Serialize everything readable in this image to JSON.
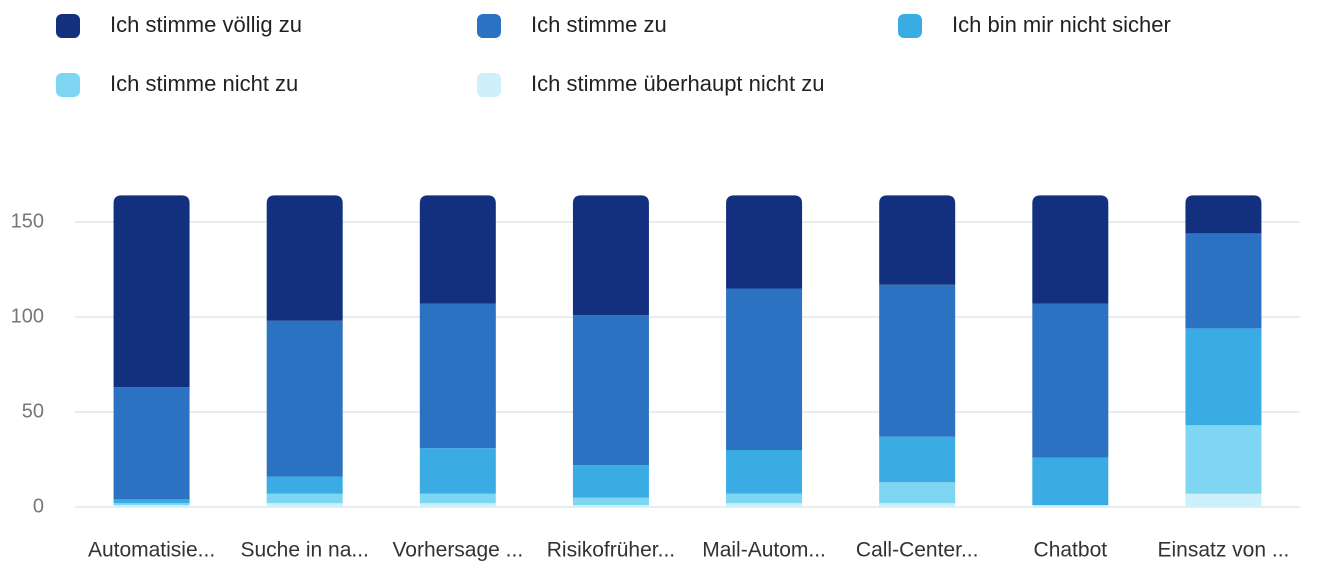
{
  "chart_data": {
    "type": "stacked_bar",
    "categories": [
      "Automatisie...",
      "Suche in na...",
      "Vorhersage ...",
      "Risikofrüher...",
      "Mail-Autom...",
      "Call-Center...",
      "Chatbot",
      "Einsatz von ..."
    ],
    "series": [
      {
        "name": "Ich stimme völlig zu",
        "color": "#13307f",
        "values": [
          101,
          66,
          57,
          63,
          49,
          47,
          57,
          20
        ]
      },
      {
        "name": "Ich stimme zu",
        "color": "#2b72c2",
        "values": [
          59,
          82,
          76,
          79,
          85,
          80,
          81,
          50
        ]
      },
      {
        "name": "Ich bin mir nicht sicher",
        "color": "#3aace3",
        "values": [
          2,
          9,
          24,
          17,
          23,
          24,
          25,
          51
        ]
      },
      {
        "name": "Ich stimme nicht zu",
        "color": "#7fd6f3",
        "values": [
          1,
          5,
          5,
          4,
          5,
          11,
          0,
          36
        ]
      },
      {
        "name": "Ich stimme überhaupt nicht zu",
        "color": "#cdf0fa",
        "values": [
          1,
          2,
          2,
          1,
          2,
          2,
          1,
          7
        ]
      }
    ],
    "ylim": [
      0,
      165
    ],
    "yticks": [
      0,
      50,
      100,
      150
    ],
    "grid": true
  }
}
